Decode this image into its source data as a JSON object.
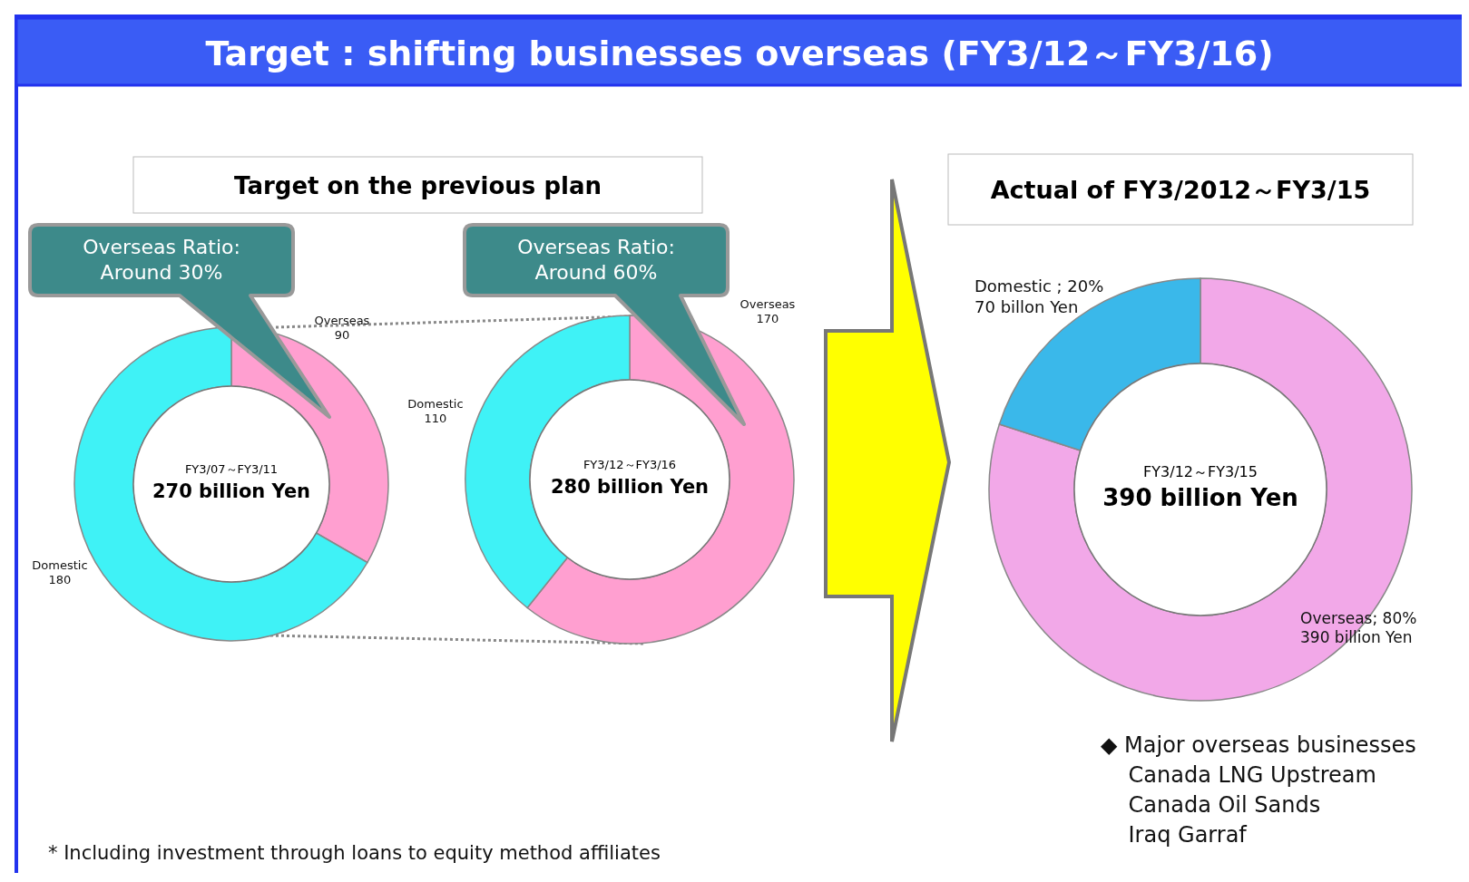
{
  "chart_data": [
    {
      "type": "donut",
      "title": "Target : shifting businesses overseas (FY3/12～FY3/16)",
      "subtitle": "Target on the previous plan",
      "categories": [
        "Overseas",
        "Domestic"
      ],
      "values": [
        90,
        180
      ],
      "data_labels": true,
      "colors": [
        "#ff9fd0",
        "#3ff2f6"
      ],
      "annotations": [
        "FY3/07～FY3/11",
        "270 billion Yen",
        "Overseas Ratio:\nAround 30%",
        "* Including investment through loans to equity method affiliates"
      ]
    },
    {
      "type": "donut",
      "categories": [
        "Overseas",
        "Domestic"
      ],
      "values": [
        170,
        110
      ],
      "data_labels": true,
      "colors": [
        "#ff9fd0",
        "#3ff2f6"
      ],
      "annotations": [
        "FY3/12～FY3/16",
        "280 billion Yen",
        "Overseas Ratio:\nAround 60%"
      ]
    },
    {
      "type": "donut",
      "title": "Actual of FY3/2012～FY3/15",
      "categories": [
        "Overseas",
        "Domestic"
      ],
      "values": [
        80,
        20
      ],
      "colors": [
        "#f2a8e8",
        "#3ab8ea"
      ],
      "value_labels": [
        "; 80%\n390 billion Yen",
        " ; 20%\n70 billon Yen"
      ],
      "annotations": [
        "FY3/12～FY3/15",
        "390 billion Yen",
        "◆ Major overseas businesses\n    Canada LNG Upstream\n    Canada Oil Sands\n    Iraq Garraf"
      ]
    }
  ]
}
